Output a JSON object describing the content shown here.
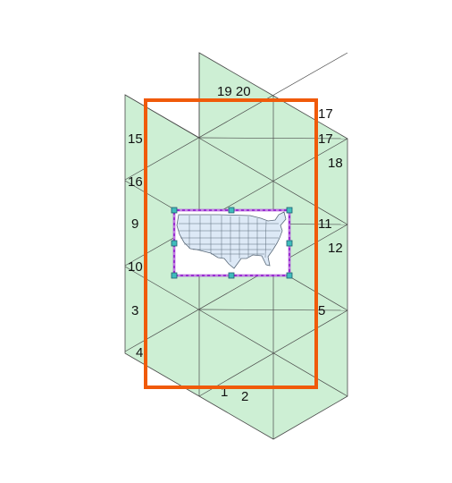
{
  "colors": {
    "face_fill": "#cdefd4",
    "face_edge": "#4a4a4a",
    "frame": "#f05a0a",
    "selection": "#9a2fd0",
    "handle_fill": "#3fbcbc",
    "map_fill": "#dde9f6",
    "map_lines": "#5a6a7a"
  },
  "face_labels": {
    "l15": "15",
    "l16": "16",
    "l9": "9",
    "l10": "10",
    "l3": "3",
    "l4": "4",
    "l19_20": "19 20",
    "l17a": "17",
    "l17": "17",
    "l18": "18",
    "l11": "11",
    "l12": "12",
    "l5": "5",
    "l1": "1",
    "l2": "2"
  },
  "icons": {
    "map": "usa-states-map-icon",
    "selection_handle": "resize-handle-icon"
  }
}
